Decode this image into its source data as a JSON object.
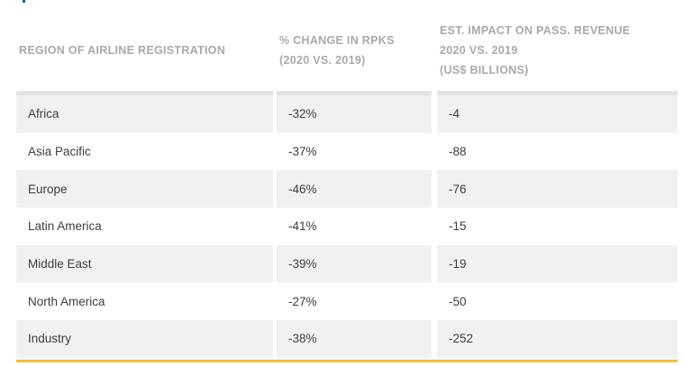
{
  "colors": {
    "header_text": "#a9a9a9",
    "cell_text": "#3d3d3d",
    "row_shade": "#f1f1f1",
    "row_white": "#ffffff",
    "top_strip": "#e3e3e3",
    "accent_line": "#eec13e",
    "fragment_blue": "#1f618d"
  },
  "table": {
    "columns": [
      {
        "header_lines": [
          "REGION OF AIRLINE REGISTRATION"
        ]
      },
      {
        "header_lines": [
          "% CHANGE IN RPKS",
          "(2020 VS. 2019)"
        ]
      },
      {
        "header_lines": [
          "EST. IMPACT ON PASS. REVENUE",
          "2020 VS. 2019",
          "(US$ BILLIONS)"
        ]
      }
    ],
    "rows": [
      {
        "region": "Africa",
        "rpks_change": "-32%",
        "revenue_impact": "-4"
      },
      {
        "region": "Asia Pacific",
        "rpks_change": "-37%",
        "revenue_impact": "-88"
      },
      {
        "region": "Europe",
        "rpks_change": "-46%",
        "revenue_impact": "-76"
      },
      {
        "region": "Latin America",
        "rpks_change": "-41%",
        "revenue_impact": "-15"
      },
      {
        "region": "Middle East",
        "rpks_change": "-39%",
        "revenue_impact": "-19"
      },
      {
        "region": "North America",
        "rpks_change": "-27%",
        "revenue_impact": "-50"
      },
      {
        "region": "Industry",
        "rpks_change": "-38%",
        "revenue_impact": "-252"
      }
    ]
  },
  "chart_data": {
    "type": "table",
    "columns": [
      "REGION OF AIRLINE REGISTRATION",
      "% CHANGE IN RPKS (2020 VS. 2019)",
      "EST. IMPACT ON PASS. REVENUE 2020 VS. 2019 (US$ BILLIONS)"
    ],
    "rows": [
      [
        "Africa",
        "-32%",
        "-4"
      ],
      [
        "Asia Pacific",
        "-37%",
        "-88"
      ],
      [
        "Europe",
        "-46%",
        "-76"
      ],
      [
        "Latin America",
        "-41%",
        "-15"
      ],
      [
        "Middle East",
        "-39%",
        "-19"
      ],
      [
        "North America",
        "-27%",
        "-50"
      ],
      [
        "Industry",
        "-38%",
        "-252"
      ]
    ]
  }
}
